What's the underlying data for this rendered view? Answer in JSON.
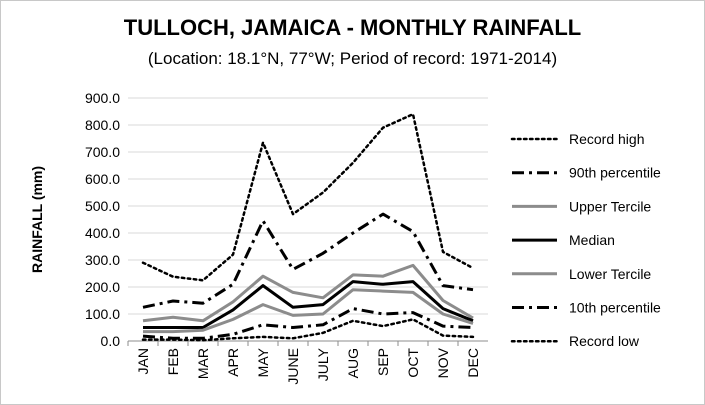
{
  "chart_data": {
    "type": "line",
    "title": "TULLOCH, JAMAICA - MONTHLY RAINFALL",
    "subtitle": "(Location: 18.1°N, 77°W; Period of record: 1971-2014)",
    "ylabel": "RAINFALL (mm)",
    "xlabel": "",
    "ylim": [
      0,
      900
    ],
    "yticks": [
      "0.0",
      "100.0",
      "200.0",
      "300.0",
      "400.0",
      "500.0",
      "600.0",
      "700.0",
      "800.0",
      "900.0"
    ],
    "categories": [
      "JAN",
      "FEB",
      "MAR",
      "APR",
      "MAY",
      "JUNE",
      "JULY",
      "AUG",
      "SEP",
      "OCT",
      "NOV",
      "DEC"
    ],
    "grid": true,
    "legend_position": "right",
    "series": [
      {
        "name": "Record high",
        "style": "dotted",
        "color": "#000000",
        "width": 2.5,
        "values": [
          290,
          238,
          225,
          320,
          735,
          470,
          550,
          660,
          790,
          840,
          330,
          270
        ]
      },
      {
        "name": "90th percentile",
        "style": "dashdot",
        "color": "#000000",
        "width": 3,
        "values": [
          125,
          148,
          140,
          210,
          445,
          265,
          325,
          400,
          470,
          405,
          205,
          190
        ]
      },
      {
        "name": "Upper Tercile",
        "style": "solid",
        "color": "#8c8c8c",
        "width": 3,
        "values": [
          75,
          88,
          75,
          145,
          240,
          180,
          160,
          245,
          240,
          280,
          150,
          85
        ]
      },
      {
        "name": "Median",
        "style": "solid",
        "color": "#000000",
        "width": 3,
        "values": [
          50,
          50,
          50,
          115,
          205,
          125,
          135,
          220,
          210,
          220,
          120,
          75
        ]
      },
      {
        "name": "Lower Tercile",
        "style": "solid",
        "color": "#8c8c8c",
        "width": 3,
        "values": [
          35,
          35,
          40,
          80,
          135,
          95,
          100,
          190,
          185,
          180,
          100,
          65
        ]
      },
      {
        "name": "10th percentile",
        "style": "dashdot",
        "color": "#000000",
        "width": 3,
        "values": [
          18,
          10,
          10,
          25,
          60,
          50,
          60,
          120,
          100,
          105,
          55,
          50
        ]
      },
      {
        "name": "Record low",
        "style": "dotted",
        "color": "#000000",
        "width": 2.5,
        "values": [
          5,
          5,
          3,
          10,
          15,
          10,
          30,
          75,
          55,
          80,
          20,
          15
        ]
      }
    ]
  }
}
